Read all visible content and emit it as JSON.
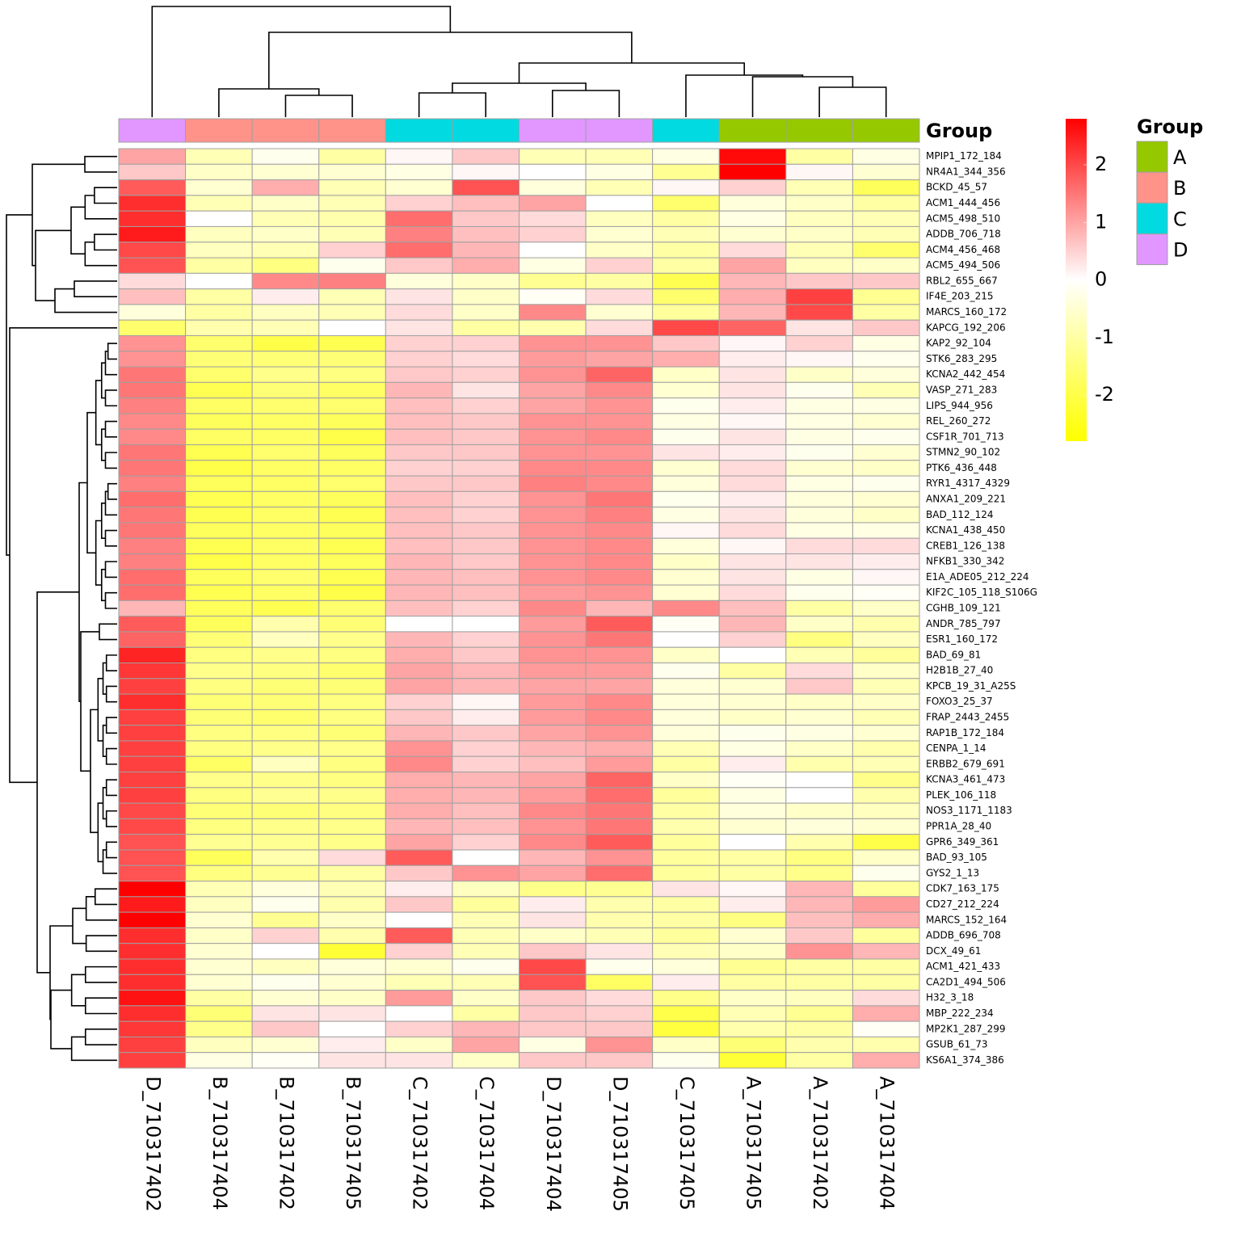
{
  "chart_data": {
    "type": "heatmap",
    "x": [
      "D_710317402",
      "B_710317404",
      "B_710317402",
      "B_710317405",
      "C_710317402",
      "C_710317404",
      "D_710317404",
      "D_710317405",
      "C_710317405",
      "A_710317405",
      "A_710317402",
      "A_710317404"
    ],
    "y": [
      "MPIP1_172_184",
      "NR4A1_344_356",
      "BCKD_45_57",
      "ACM1_444_456",
      "ACM5_498_510",
      "ADDB_706_718",
      "ACM4_456_468",
      "ACM5_494_506",
      "RBL2_655_667",
      "IF4E_203_215",
      "MARCS_160_172",
      "KAPCG_192_206",
      "KAP2_92_104",
      "STK6_283_295",
      "KCNA2_442_454",
      "VASP_271_283",
      "LIPS_944_956",
      "REL_260_272",
      "CSF1R_701_713",
      "STMN2_90_102",
      "PTK6_436_448",
      "RYR1_4317_4329",
      "ANXA1_209_221",
      "BAD_112_124",
      "KCNA1_438_450",
      "CREB1_126_138",
      "NFKB1_330_342",
      "E1A_ADE05_212_224",
      "KIF2C_105_118_S106G",
      "CGHB_109_121",
      "ANDR_785_797",
      "ESR1_160_172",
      "BAD_69_81",
      "H2B1B_27_40",
      "KPCB_19_31_A25S",
      "FOXO3_25_37",
      "FRAP_2443_2455",
      "RAP1B_172_184",
      "CENPA_1_14",
      "ERBB2_679_691",
      "KCNA3_461_473",
      "PLEK_106_118",
      "NOS3_1171_1183",
      "PPR1A_28_40",
      "GPR6_349_361",
      "BAD_93_105",
      "GYS2_1_13",
      "CDK7_163_175",
      "CD27_212_224",
      "MARCS_152_164",
      "ADDB_696_708",
      "DCX_49_61",
      "ACM1_421_433",
      "CA2D1_494_506",
      "H32_3_18",
      "MBP_222_234",
      "MP2K1_287_299",
      "GSUB_61_73",
      "KS6A1_374_386"
    ],
    "values": [
      [
        1.0,
        -0.8,
        -0.2,
        -1.0,
        0.1,
        0.6,
        -0.8,
        -0.8,
        -0.3,
        2.7,
        -1.0,
        -0.3
      ],
      [
        0.6,
        -0.6,
        -0.5,
        -0.5,
        -0.3,
        0.1,
        0.0,
        -0.3,
        -1.2,
        2.8,
        0.1,
        -0.5
      ],
      [
        1.8,
        -0.5,
        0.9,
        -0.8,
        -0.5,
        1.9,
        -0.4,
        -0.8,
        0.1,
        0.5,
        -0.8,
        -1.8
      ],
      [
        2.3,
        -0.8,
        -0.6,
        -0.8,
        0.5,
        0.7,
        1.0,
        0.0,
        -1.6,
        -0.4,
        -0.6,
        -1.0
      ],
      [
        2.3,
        0.0,
        -0.8,
        -0.9,
        1.6,
        0.6,
        0.4,
        -0.7,
        -1.0,
        -0.3,
        -0.7,
        -0.8
      ],
      [
        2.5,
        -0.7,
        -0.6,
        -0.8,
        1.4,
        0.7,
        0.5,
        -0.5,
        -0.8,
        -0.5,
        -0.6,
        -0.8
      ],
      [
        2.0,
        -0.7,
        -0.8,
        0.5,
        1.6,
        0.8,
        0.0,
        -0.6,
        -1.0,
        0.4,
        -0.8,
        -1.6
      ],
      [
        1.9,
        -1.0,
        -1.4,
        -0.2,
        0.6,
        0.9,
        -0.3,
        0.5,
        -1.0,
        1.0,
        -0.7,
        -0.6
      ],
      [
        0.4,
        0.0,
        1.3,
        1.4,
        -0.4,
        -0.6,
        -1.2,
        -1.0,
        -1.9,
        0.8,
        0.6,
        0.6
      ],
      [
        0.7,
        -1.0,
        0.2,
        -0.8,
        0.3,
        -0.6,
        -0.1,
        0.4,
        -1.6,
        0.9,
        2.1,
        -1.2
      ],
      [
        -0.4,
        -1.0,
        -0.7,
        -0.8,
        0.4,
        -0.6,
        1.3,
        -0.5,
        -1.1,
        0.8,
        2.0,
        -1.0
      ],
      [
        -1.6,
        -0.9,
        -0.8,
        0.0,
        0.3,
        -1.0,
        -0.9,
        0.4,
        2.0,
        1.7,
        0.3,
        0.6
      ],
      [
        1.2,
        -1.6,
        -2.0,
        -1.9,
        0.5,
        0.5,
        1.2,
        1.2,
        0.6,
        0.1,
        0.5,
        -0.3
      ],
      [
        1.2,
        -1.5,
        -1.5,
        -1.5,
        0.5,
        0.4,
        1.1,
        1.0,
        0.9,
        0.2,
        0.1,
        -0.2
      ],
      [
        1.5,
        -1.6,
        -1.3,
        -1.4,
        0.6,
        0.5,
        1.2,
        1.7,
        -0.6,
        0.3,
        -0.6,
        -0.4
      ],
      [
        1.5,
        -1.9,
        -1.5,
        -1.7,
        0.8,
        0.3,
        1.0,
        1.3,
        -0.5,
        0.3,
        -0.2,
        -0.8
      ],
      [
        1.4,
        -1.7,
        -1.6,
        -1.6,
        0.7,
        0.5,
        1.0,
        1.2,
        -0.2,
        0.2,
        -0.3,
        -0.3
      ],
      [
        1.3,
        -1.8,
        -1.7,
        -1.8,
        0.7,
        0.6,
        1.2,
        1.2,
        -0.3,
        0.1,
        -0.3,
        -0.5
      ],
      [
        1.3,
        -1.7,
        -1.7,
        -2.0,
        0.7,
        0.6,
        1.2,
        1.3,
        -0.2,
        0.3,
        -0.3,
        -0.2
      ],
      [
        1.5,
        -1.9,
        -1.6,
        -1.8,
        0.6,
        0.6,
        1.2,
        1.2,
        0.3,
        0.2,
        -0.2,
        -0.5
      ],
      [
        1.5,
        -2.0,
        -1.7,
        -1.7,
        0.5,
        0.5,
        1.3,
        1.3,
        -0.5,
        0.4,
        -0.5,
        -0.6
      ],
      [
        1.4,
        -1.8,
        -1.7,
        -1.6,
        0.6,
        0.6,
        1.4,
        1.3,
        -0.4,
        0.4,
        -0.3,
        -0.2
      ],
      [
        1.6,
        -1.9,
        -1.7,
        -1.8,
        0.7,
        0.5,
        1.2,
        1.5,
        -0.2,
        0.2,
        -0.4,
        -0.5
      ],
      [
        1.5,
        -1.9,
        -1.7,
        -1.9,
        0.7,
        0.5,
        1.2,
        1.4,
        -0.3,
        0.3,
        -0.4,
        -0.6
      ],
      [
        1.5,
        -1.8,
        -1.7,
        -1.8,
        0.7,
        0.6,
        1.2,
        1.3,
        0.1,
        0.4,
        -0.3,
        -0.3
      ],
      [
        1.4,
        -1.9,
        -1.7,
        -1.9,
        0.7,
        0.6,
        1.2,
        1.3,
        -0.4,
        0.1,
        0.4,
        0.4
      ],
      [
        1.4,
        -2.0,
        -1.7,
        -1.8,
        0.8,
        0.6,
        1.2,
        1.3,
        -0.6,
        0.3,
        0.3,
        0.2
      ],
      [
        1.6,
        -1.8,
        -1.6,
        -1.9,
        0.8,
        0.7,
        1.2,
        1.3,
        -0.5,
        0.3,
        -0.3,
        0.1
      ],
      [
        1.6,
        -1.9,
        -1.7,
        -2.0,
        0.8,
        0.7,
        1.1,
        1.2,
        -0.5,
        0.4,
        -0.2,
        -0.1
      ],
      [
        0.8,
        -1.8,
        -1.9,
        -1.6,
        0.7,
        0.5,
        1.3,
        0.8,
        1.3,
        0.7,
        -1.0,
        -0.6
      ],
      [
        1.8,
        -1.8,
        -0.9,
        -1.5,
        0.0,
        0.0,
        1.1,
        1.8,
        -0.1,
        0.8,
        -0.6,
        -0.9
      ],
      [
        1.7,
        -1.5,
        -0.7,
        -1.3,
        0.8,
        0.5,
        1.2,
        1.5,
        0.0,
        0.5,
        -1.4,
        -0.7
      ],
      [
        2.4,
        -1.4,
        -1.3,
        -1.4,
        0.9,
        0.6,
        1.2,
        1.2,
        -0.6,
        0.0,
        -0.8,
        -1.1
      ],
      [
        2.2,
        -1.3,
        -1.4,
        -1.6,
        1.0,
        0.8,
        1.1,
        1.1,
        -0.2,
        -1.0,
        0.4,
        -0.6
      ],
      [
        2.1,
        -1.4,
        -1.5,
        -1.5,
        1.0,
        0.8,
        1.0,
        1.0,
        -0.4,
        -0.5,
        0.6,
        -0.8
      ],
      [
        2.3,
        -1.5,
        -1.5,
        -1.4,
        0.5,
        0.1,
        1.1,
        1.3,
        -0.4,
        -0.5,
        -0.6,
        -0.6
      ],
      [
        2.1,
        -1.5,
        -1.6,
        -1.4,
        0.6,
        0.2,
        1.1,
        1.3,
        -0.4,
        -0.6,
        -0.5,
        -0.8
      ],
      [
        2.1,
        -1.4,
        -1.4,
        -1.5,
        0.8,
        0.6,
        1.0,
        1.2,
        -0.4,
        -0.2,
        -0.3,
        -0.5
      ],
      [
        2.1,
        -1.4,
        -1.3,
        -1.3,
        1.2,
        0.5,
        0.8,
        0.9,
        -0.8,
        -0.3,
        -0.6,
        -0.9
      ],
      [
        2.1,
        -1.7,
        -0.7,
        -1.4,
        1.3,
        0.5,
        0.7,
        1.1,
        -1.0,
        0.2,
        -0.9,
        -0.8
      ],
      [
        2.1,
        -1.3,
        -1.3,
        -1.4,
        0.9,
        0.8,
        1.0,
        1.7,
        -0.6,
        -0.1,
        0.0,
        -1.3
      ],
      [
        2.1,
        -1.4,
        -1.2,
        -1.3,
        0.9,
        0.8,
        1.1,
        1.6,
        -1.1,
        -0.3,
        0.0,
        -0.9
      ],
      [
        2.0,
        -1.5,
        -1.5,
        -1.4,
        0.9,
        0.7,
        1.3,
        1.5,
        -1.0,
        -0.4,
        -0.6,
        -0.7
      ],
      [
        2.0,
        -1.4,
        -1.3,
        -1.3,
        0.8,
        0.7,
        1.2,
        1.5,
        -0.9,
        -0.5,
        -0.4,
        -0.5
      ],
      [
        1.9,
        -1.2,
        -1.2,
        -1.3,
        1.0,
        0.5,
        1.3,
        1.8,
        -1.1,
        0.0,
        -0.9,
        -2.0
      ],
      [
        1.9,
        -1.8,
        -0.9,
        0.4,
        1.8,
        0.0,
        0.8,
        1.2,
        -1.1,
        -1.0,
        -1.4,
        -0.6
      ],
      [
        1.9,
        -1.4,
        -1.2,
        -1.0,
        0.6,
        1.2,
        1.0,
        1.6,
        -1.1,
        -1.0,
        -1.3,
        -0.2
      ],
      [
        2.8,
        -0.8,
        -0.4,
        -0.8,
        0.2,
        -0.7,
        -1.3,
        -1.2,
        0.3,
        0.1,
        0.8,
        -1.1
      ],
      [
        2.5,
        -0.7,
        -0.2,
        -0.9,
        0.6,
        -1.1,
        0.2,
        -0.9,
        -1.0,
        0.2,
        0.8,
        1.1
      ],
      [
        2.8,
        -0.5,
        -1.2,
        -0.6,
        0.0,
        -0.8,
        0.3,
        -0.9,
        -1.0,
        -1.4,
        0.7,
        0.9
      ],
      [
        2.3,
        -0.6,
        0.5,
        -0.9,
        1.8,
        -0.8,
        -0.6,
        -0.8,
        -1.1,
        -0.5,
        0.6,
        -1.1
      ],
      [
        2.3,
        -0.5,
        0.0,
        -2.2,
        0.5,
        -0.8,
        0.6,
        0.3,
        -0.8,
        -0.6,
        1.2,
        0.8
      ],
      [
        2.3,
        -0.5,
        -0.7,
        -0.4,
        -0.5,
        -0.2,
        2.0,
        -0.2,
        -0.4,
        -1.2,
        -1.0,
        -1.0
      ],
      [
        2.3,
        -0.5,
        -0.2,
        -0.5,
        -0.8,
        -0.8,
        1.9,
        -1.7,
        0.2,
        -1.0,
        -1.0,
        -1.0
      ],
      [
        2.6,
        -1.0,
        -0.5,
        -0.6,
        1.1,
        -0.6,
        0.6,
        0.4,
        -1.3,
        -0.6,
        -0.7,
        0.4
      ],
      [
        2.3,
        -1.5,
        0.3,
        0.3,
        0.0,
        -1.0,
        0.6,
        0.5,
        -2.0,
        -0.8,
        -1.2,
        0.9
      ],
      [
        2.2,
        -1.3,
        0.6,
        0.0,
        0.5,
        0.8,
        0.6,
        0.6,
        -2.1,
        -0.9,
        -1.0,
        -0.1
      ],
      [
        2.1,
        -0.7,
        -0.5,
        0.2,
        -0.6,
        1.0,
        -0.3,
        1.2,
        -0.6,
        -1.5,
        -0.9,
        -0.9
      ],
      [
        2.1,
        -0.3,
        -0.1,
        0.3,
        0.3,
        -0.6,
        0.6,
        0.6,
        -0.2,
        -2.2,
        -1.0,
        0.9
      ]
    ],
    "colorbar": {
      "colors": [
        "#FFFF00",
        "#FFFFFF",
        "#FF0000"
      ],
      "lim": [
        -2.8,
        2.8
      ],
      "ticks": [
        -2,
        -1,
        0,
        1,
        2
      ]
    },
    "annotation": {
      "title": "Group",
      "values": [
        "D",
        "B",
        "B",
        "B",
        "C",
        "C",
        "D",
        "D",
        "C",
        "A",
        "A",
        "A"
      ],
      "levels": [
        "A",
        "B",
        "C",
        "D"
      ],
      "colors": [
        "#96C800",
        "#FF9289",
        "#00DAE0",
        "#E197FF"
      ]
    }
  }
}
